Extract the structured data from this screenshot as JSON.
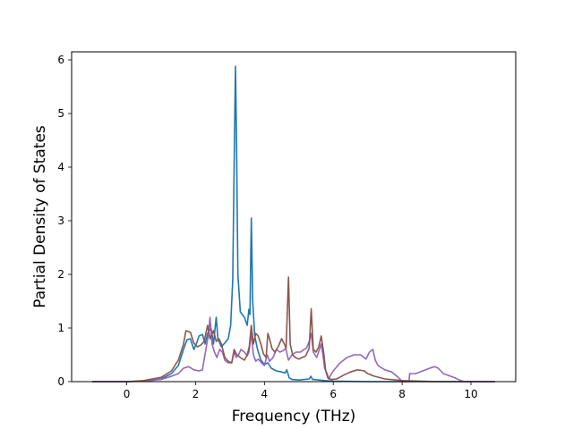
{
  "chart_data": {
    "type": "line",
    "title": "",
    "xlabel": "Frequency (THz)",
    "ylabel": "Partial Density of States",
    "xlim": [
      -1.6,
      11.3
    ],
    "ylim": [
      0,
      6.15
    ],
    "xticks": [
      0,
      2,
      4,
      6,
      8,
      10
    ],
    "yticks": [
      0,
      1,
      2,
      3,
      4,
      5,
      6
    ],
    "grid": false,
    "legend": "none",
    "series": [
      {
        "color": "#1f77b4",
        "points": [
          [
            -1,
            0
          ],
          [
            0,
            0
          ],
          [
            0.5,
            0.01
          ],
          [
            1,
            0.05
          ],
          [
            1.3,
            0.15
          ],
          [
            1.5,
            0.3
          ],
          [
            1.65,
            0.6
          ],
          [
            1.75,
            0.78
          ],
          [
            1.85,
            0.8
          ],
          [
            1.95,
            0.6
          ],
          [
            2.05,
            0.75
          ],
          [
            2.1,
            0.85
          ],
          [
            2.2,
            0.88
          ],
          [
            2.28,
            0.7
          ],
          [
            2.35,
            0.9
          ],
          [
            2.45,
            1.0
          ],
          [
            2.52,
            0.7
          ],
          [
            2.6,
            1.2
          ],
          [
            2.65,
            0.8
          ],
          [
            2.75,
            0.65
          ],
          [
            2.85,
            0.72
          ],
          [
            2.95,
            0.8
          ],
          [
            3.02,
            1.05
          ],
          [
            3.08,
            1.9
          ],
          [
            3.13,
            4.5
          ],
          [
            3.16,
            5.88
          ],
          [
            3.19,
            4.5
          ],
          [
            3.23,
            2.0
          ],
          [
            3.3,
            1.3
          ],
          [
            3.42,
            1.2
          ],
          [
            3.5,
            1.05
          ],
          [
            3.55,
            1.35
          ],
          [
            3.58,
            1.25
          ],
          [
            3.62,
            3.05
          ],
          [
            3.66,
            1.5
          ],
          [
            3.72,
            0.85
          ],
          [
            3.8,
            0.6
          ],
          [
            3.9,
            0.4
          ],
          [
            4.0,
            0.32
          ],
          [
            4.1,
            0.35
          ],
          [
            4.2,
            0.25
          ],
          [
            4.35,
            0.2
          ],
          [
            4.5,
            0.18
          ],
          [
            4.6,
            0.16
          ],
          [
            4.65,
            0.22
          ],
          [
            4.72,
            0.07
          ],
          [
            4.8,
            0.04
          ],
          [
            5.0,
            0.03
          ],
          [
            5.3,
            0.05
          ],
          [
            5.35,
            0.1
          ],
          [
            5.4,
            0.04
          ],
          [
            5.6,
            0.03
          ],
          [
            5.75,
            0.02
          ],
          [
            6.0,
            0.01
          ],
          [
            7,
            0
          ],
          [
            10.7,
            0
          ]
        ]
      },
      {
        "color": "#9467bd",
        "points": [
          [
            -1,
            0
          ],
          [
            0,
            0
          ],
          [
            0.5,
            0.01
          ],
          [
            1,
            0.04
          ],
          [
            1.3,
            0.1
          ],
          [
            1.5,
            0.15
          ],
          [
            1.65,
            0.25
          ],
          [
            1.8,
            0.28
          ],
          [
            1.95,
            0.22
          ],
          [
            2.1,
            0.2
          ],
          [
            2.2,
            0.22
          ],
          [
            2.3,
            0.6
          ],
          [
            2.38,
            0.9
          ],
          [
            2.42,
            1.2
          ],
          [
            2.48,
            0.7
          ],
          [
            2.55,
            0.55
          ],
          [
            2.62,
            0.45
          ],
          [
            2.7,
            0.6
          ],
          [
            2.78,
            0.55
          ],
          [
            2.85,
            0.4
          ],
          [
            2.95,
            0.35
          ],
          [
            3.05,
            0.35
          ],
          [
            3.12,
            0.55
          ],
          [
            3.18,
            0.45
          ],
          [
            3.25,
            0.5
          ],
          [
            3.32,
            0.6
          ],
          [
            3.42,
            0.55
          ],
          [
            3.5,
            0.48
          ],
          [
            3.55,
            0.55
          ],
          [
            3.62,
            0.9
          ],
          [
            3.68,
            0.5
          ],
          [
            3.75,
            0.38
          ],
          [
            3.82,
            0.42
          ],
          [
            3.92,
            0.35
          ],
          [
            4.0,
            0.3
          ],
          [
            4.08,
            0.5
          ],
          [
            4.15,
            0.38
          ],
          [
            4.25,
            0.45
          ],
          [
            4.35,
            0.6
          ],
          [
            4.45,
            0.55
          ],
          [
            4.55,
            0.58
          ],
          [
            4.62,
            0.62
          ],
          [
            4.7,
            0.4
          ],
          [
            4.8,
            0.5
          ],
          [
            4.92,
            0.55
          ],
          [
            5.05,
            0.55
          ],
          [
            5.15,
            0.6
          ],
          [
            5.22,
            0.62
          ],
          [
            5.3,
            0.75
          ],
          [
            5.36,
            0.9
          ],
          [
            5.42,
            0.55
          ],
          [
            5.52,
            0.45
          ],
          [
            5.6,
            0.6
          ],
          [
            5.65,
            0.7
          ],
          [
            5.7,
            0.5
          ],
          [
            5.75,
            0.25
          ],
          [
            5.82,
            0.15
          ],
          [
            5.88,
            0.05
          ],
          [
            5.92,
            0.12
          ],
          [
            6.0,
            0.2
          ],
          [
            6.2,
            0.35
          ],
          [
            6.4,
            0.45
          ],
          [
            6.6,
            0.5
          ],
          [
            6.8,
            0.5
          ],
          [
            6.95,
            0.42
          ],
          [
            7.05,
            0.55
          ],
          [
            7.15,
            0.6
          ],
          [
            7.22,
            0.4
          ],
          [
            7.3,
            0.3
          ],
          [
            7.5,
            0.22
          ],
          [
            7.7,
            0.18
          ],
          [
            7.85,
            0.1
          ],
          [
            7.95,
            0.04
          ],
          [
            8.0,
            0
          ],
          [
            8.2,
            0
          ],
          [
            8.22,
            0.15
          ],
          [
            8.4,
            0.15
          ],
          [
            8.6,
            0.2
          ],
          [
            8.8,
            0.25
          ],
          [
            8.95,
            0.28
          ],
          [
            9.05,
            0.25
          ],
          [
            9.2,
            0.15
          ],
          [
            9.5,
            0.08
          ],
          [
            9.7,
            0.02
          ],
          [
            9.8,
            0
          ],
          [
            10.7,
            0
          ]
        ]
      },
      {
        "color": "#8c564b",
        "points": [
          [
            -1,
            0
          ],
          [
            0,
            0
          ],
          [
            0.5,
            0.02
          ],
          [
            1,
            0.08
          ],
          [
            1.3,
            0.2
          ],
          [
            1.5,
            0.4
          ],
          [
            1.65,
            0.7
          ],
          [
            1.72,
            0.95
          ],
          [
            1.85,
            0.92
          ],
          [
            1.95,
            0.72
          ],
          [
            2.05,
            0.65
          ],
          [
            2.15,
            0.68
          ],
          [
            2.25,
            0.75
          ],
          [
            2.35,
            1.05
          ],
          [
            2.42,
            0.8
          ],
          [
            2.52,
            0.95
          ],
          [
            2.6,
            0.75
          ],
          [
            2.68,
            0.8
          ],
          [
            2.75,
            0.7
          ],
          [
            2.85,
            0.45
          ],
          [
            2.95,
            0.38
          ],
          [
            3.05,
            0.35
          ],
          [
            3.12,
            0.6
          ],
          [
            3.2,
            0.5
          ],
          [
            3.3,
            0.45
          ],
          [
            3.42,
            0.4
          ],
          [
            3.5,
            0.5
          ],
          [
            3.56,
            0.65
          ],
          [
            3.62,
            1.05
          ],
          [
            3.68,
            0.7
          ],
          [
            3.75,
            0.9
          ],
          [
            3.82,
            0.85
          ],
          [
            3.9,
            0.7
          ],
          [
            3.97,
            0.52
          ],
          [
            4.05,
            0.45
          ],
          [
            4.1,
            0.9
          ],
          [
            4.15,
            0.8
          ],
          [
            4.22,
            0.62
          ],
          [
            4.3,
            0.55
          ],
          [
            4.4,
            0.65
          ],
          [
            4.5,
            0.8
          ],
          [
            4.58,
            0.7
          ],
          [
            4.63,
            0.62
          ],
          [
            4.7,
            1.95
          ],
          [
            4.75,
            0.7
          ],
          [
            4.82,
            0.5
          ],
          [
            4.9,
            0.45
          ],
          [
            5.0,
            0.42
          ],
          [
            5.1,
            0.45
          ],
          [
            5.2,
            0.48
          ],
          [
            5.3,
            0.62
          ],
          [
            5.36,
            1.36
          ],
          [
            5.42,
            0.6
          ],
          [
            5.5,
            0.55
          ],
          [
            5.58,
            0.65
          ],
          [
            5.65,
            0.85
          ],
          [
            5.72,
            0.55
          ],
          [
            5.78,
            0.2
          ],
          [
            5.85,
            0.06
          ],
          [
            5.95,
            0.04
          ],
          [
            6.1,
            0.05
          ],
          [
            6.3,
            0.12
          ],
          [
            6.5,
            0.18
          ],
          [
            6.7,
            0.22
          ],
          [
            6.9,
            0.2
          ],
          [
            7.0,
            0.15
          ],
          [
            7.2,
            0.1
          ],
          [
            7.5,
            0.05
          ],
          [
            8.0,
            0.02
          ],
          [
            8.5,
            0.01
          ],
          [
            9,
            0
          ],
          [
            10.7,
            0
          ]
        ]
      }
    ]
  }
}
